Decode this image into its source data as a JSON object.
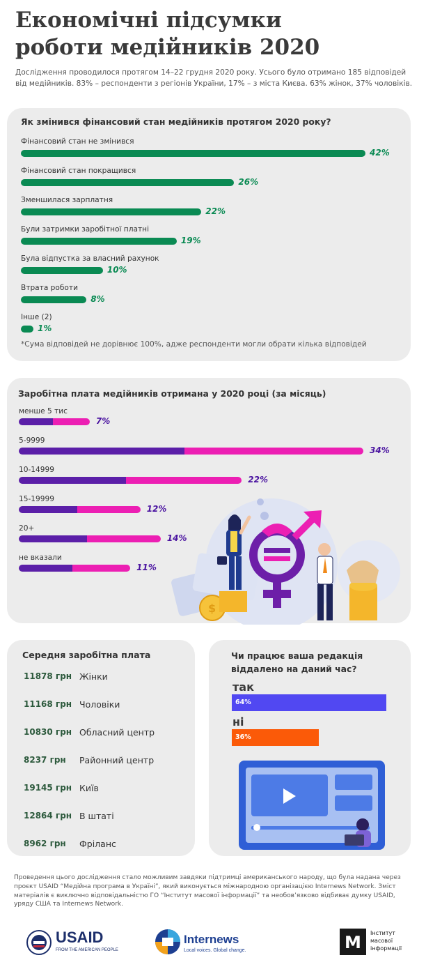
{
  "header": {
    "title_line1": "Економічні підсумки",
    "title_line2": "роботи медійників 2020",
    "intro": "Дослідження проводилося протягом 14–22 грудня 2020 року. Усього було отримано 185 відповідей від медійників. 83% – респонденти з регіонів України, 17% – з міста Києва. 63% жінок, 37% чоловіків."
  },
  "colors": {
    "green": "#0a8a53",
    "purple": "#5b1fa8",
    "pink": "#ec1fb3",
    "blue": "#5148f2",
    "orange": "#fb5a08"
  },
  "chart_data": [
    {
      "type": "bar",
      "title": "Як змінився фінансовий стан медійників протягом 2020 року?",
      "categories": [
        "Фінансовий стан не змінився",
        "Фінансовий стан покращився",
        "Зменшилася зарплатня",
        "Були затримки заробітної платні",
        "Була відпустка за власний рахунок",
        "Втрата роботи",
        "Інше (2)"
      ],
      "values": [
        42,
        26,
        22,
        19,
        10,
        8,
        1
      ],
      "labels": [
        "42%",
        "26%",
        "22%",
        "19%",
        "10%",
        "8%",
        "1%"
      ],
      "footnote": "*Сума відповідей не дорівнює 100%, адже респонденти могли обрати кілька відповідей"
    },
    {
      "type": "bar",
      "title": "Заробітна плата медійників отримана у 2020 році (за місяць)",
      "categories": [
        "менше 5 тис",
        "5-9999",
        "10-14999",
        "15-19999",
        "20+",
        "не вказали"
      ],
      "values": [
        7,
        34,
        22,
        12,
        14,
        11
      ],
      "labels": [
        "7%",
        "34%",
        "22%",
        "12%",
        "14%",
        "11%"
      ]
    },
    {
      "type": "table",
      "title": "Середня заробітна плата",
      "rows": [
        {
          "value": "11878 грн",
          "label": "Жінки"
        },
        {
          "value": "11168 грн",
          "label": "Чоловіки"
        },
        {
          "value": "10830 грн",
          "label": "Обласний центр"
        },
        {
          "value": "8237 грн",
          "label": "Районний центр"
        },
        {
          "value": "19145 грн",
          "label": "Київ"
        },
        {
          "value": "12864 грн",
          "label": "В штаті"
        },
        {
          "value": "8962 грн",
          "label": "Фріланс"
        }
      ]
    },
    {
      "type": "bar",
      "title": "Чи працює ваша редакція віддалено на даний час?",
      "categories": [
        "так",
        "ні"
      ],
      "values": [
        64,
        36
      ],
      "labels": [
        "64%",
        "36%"
      ]
    }
  ],
  "credits": "Проведення цього дослідження стало можливим завдяки підтримці американського народу, що була надана через проєкт USAID “Медійна програма в Україні”, який виконується міжнародною організацією Internews Network. Зміст матеріалів є виключно відповідальністю ГО “Інститут масової інформації” та необов’язково відбиває думку USAID, уряду США та Internews Network.",
  "logos": {
    "usaid": "USAID",
    "usaid_tagline": "FROM THE AMERICAN PEOPLE",
    "internews": "Internews",
    "internews_tagline": "Local voices. Global change.",
    "imi_mark": "М",
    "imi_line1": "Інститут",
    "imi_line2": "масової",
    "imi_line3": "інформації"
  }
}
